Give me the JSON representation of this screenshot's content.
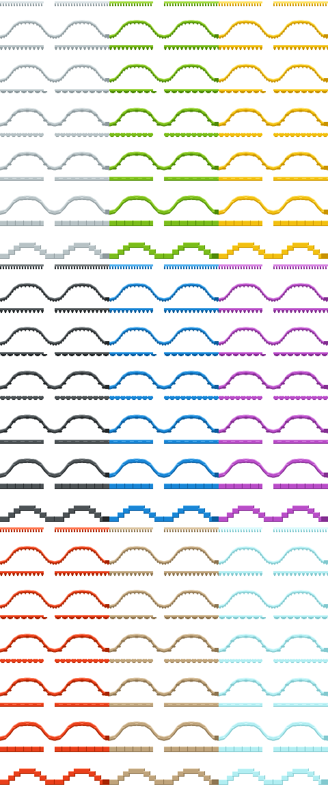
{
  "sheet": {
    "columns": 6,
    "rows": 18,
    "tile_size": [
      80,
      64
    ],
    "color_sets": [
      {
        "name": "silver",
        "colors": {
          "base": "#b8c3c6",
          "light": "#dbe3e5",
          "dark": "#8e9a9e"
        }
      },
      {
        "name": "lime",
        "colors": {
          "base": "#7bbd1c",
          "light": "#a5dc46",
          "dark": "#4f8a08"
        }
      },
      {
        "name": "gold",
        "colors": {
          "base": "#f2c012",
          "light": "#fde26a",
          "dark": "#c99300"
        }
      },
      {
        "name": "charcoal",
        "colors": {
          "base": "#4d5356",
          "light": "#7a8083",
          "dark": "#25292b"
        }
      },
      {
        "name": "azure",
        "colors": {
          "base": "#1a86d6",
          "light": "#58b3ef",
          "dark": "#0d5d9d"
        }
      },
      {
        "name": "violet",
        "colors": {
          "base": "#b94ec8",
          "light": "#d98ae3",
          "dark": "#832f91"
        }
      },
      {
        "name": "red",
        "colors": {
          "base": "#e8401c",
          "light": "#ff7a55",
          "dark": "#a82500"
        }
      },
      {
        "name": "tan",
        "colors": {
          "base": "#bfa47c",
          "light": "#dcc6a3",
          "dark": "#8e7652"
        }
      },
      {
        "name": "ice",
        "colors": {
          "base": "#b2eef2",
          "light": "#dcfbfd",
          "dark": "#83c9cf"
        }
      }
    ],
    "block_rows": [
      {
        "colors": [
          "silver",
          "lime",
          "gold"
        ]
      },
      {
        "colors": [
          "charcoal",
          "azure",
          "violet"
        ]
      },
      {
        "colors": [
          "red",
          "tan",
          "ice"
        ]
      }
    ],
    "styles": [
      {
        "name": "spiky"
      },
      {
        "name": "sawtooth"
      },
      {
        "name": "scalloped"
      },
      {
        "name": "beaded"
      },
      {
        "name": "dashed"
      },
      {
        "name": "stepped"
      }
    ]
  }
}
